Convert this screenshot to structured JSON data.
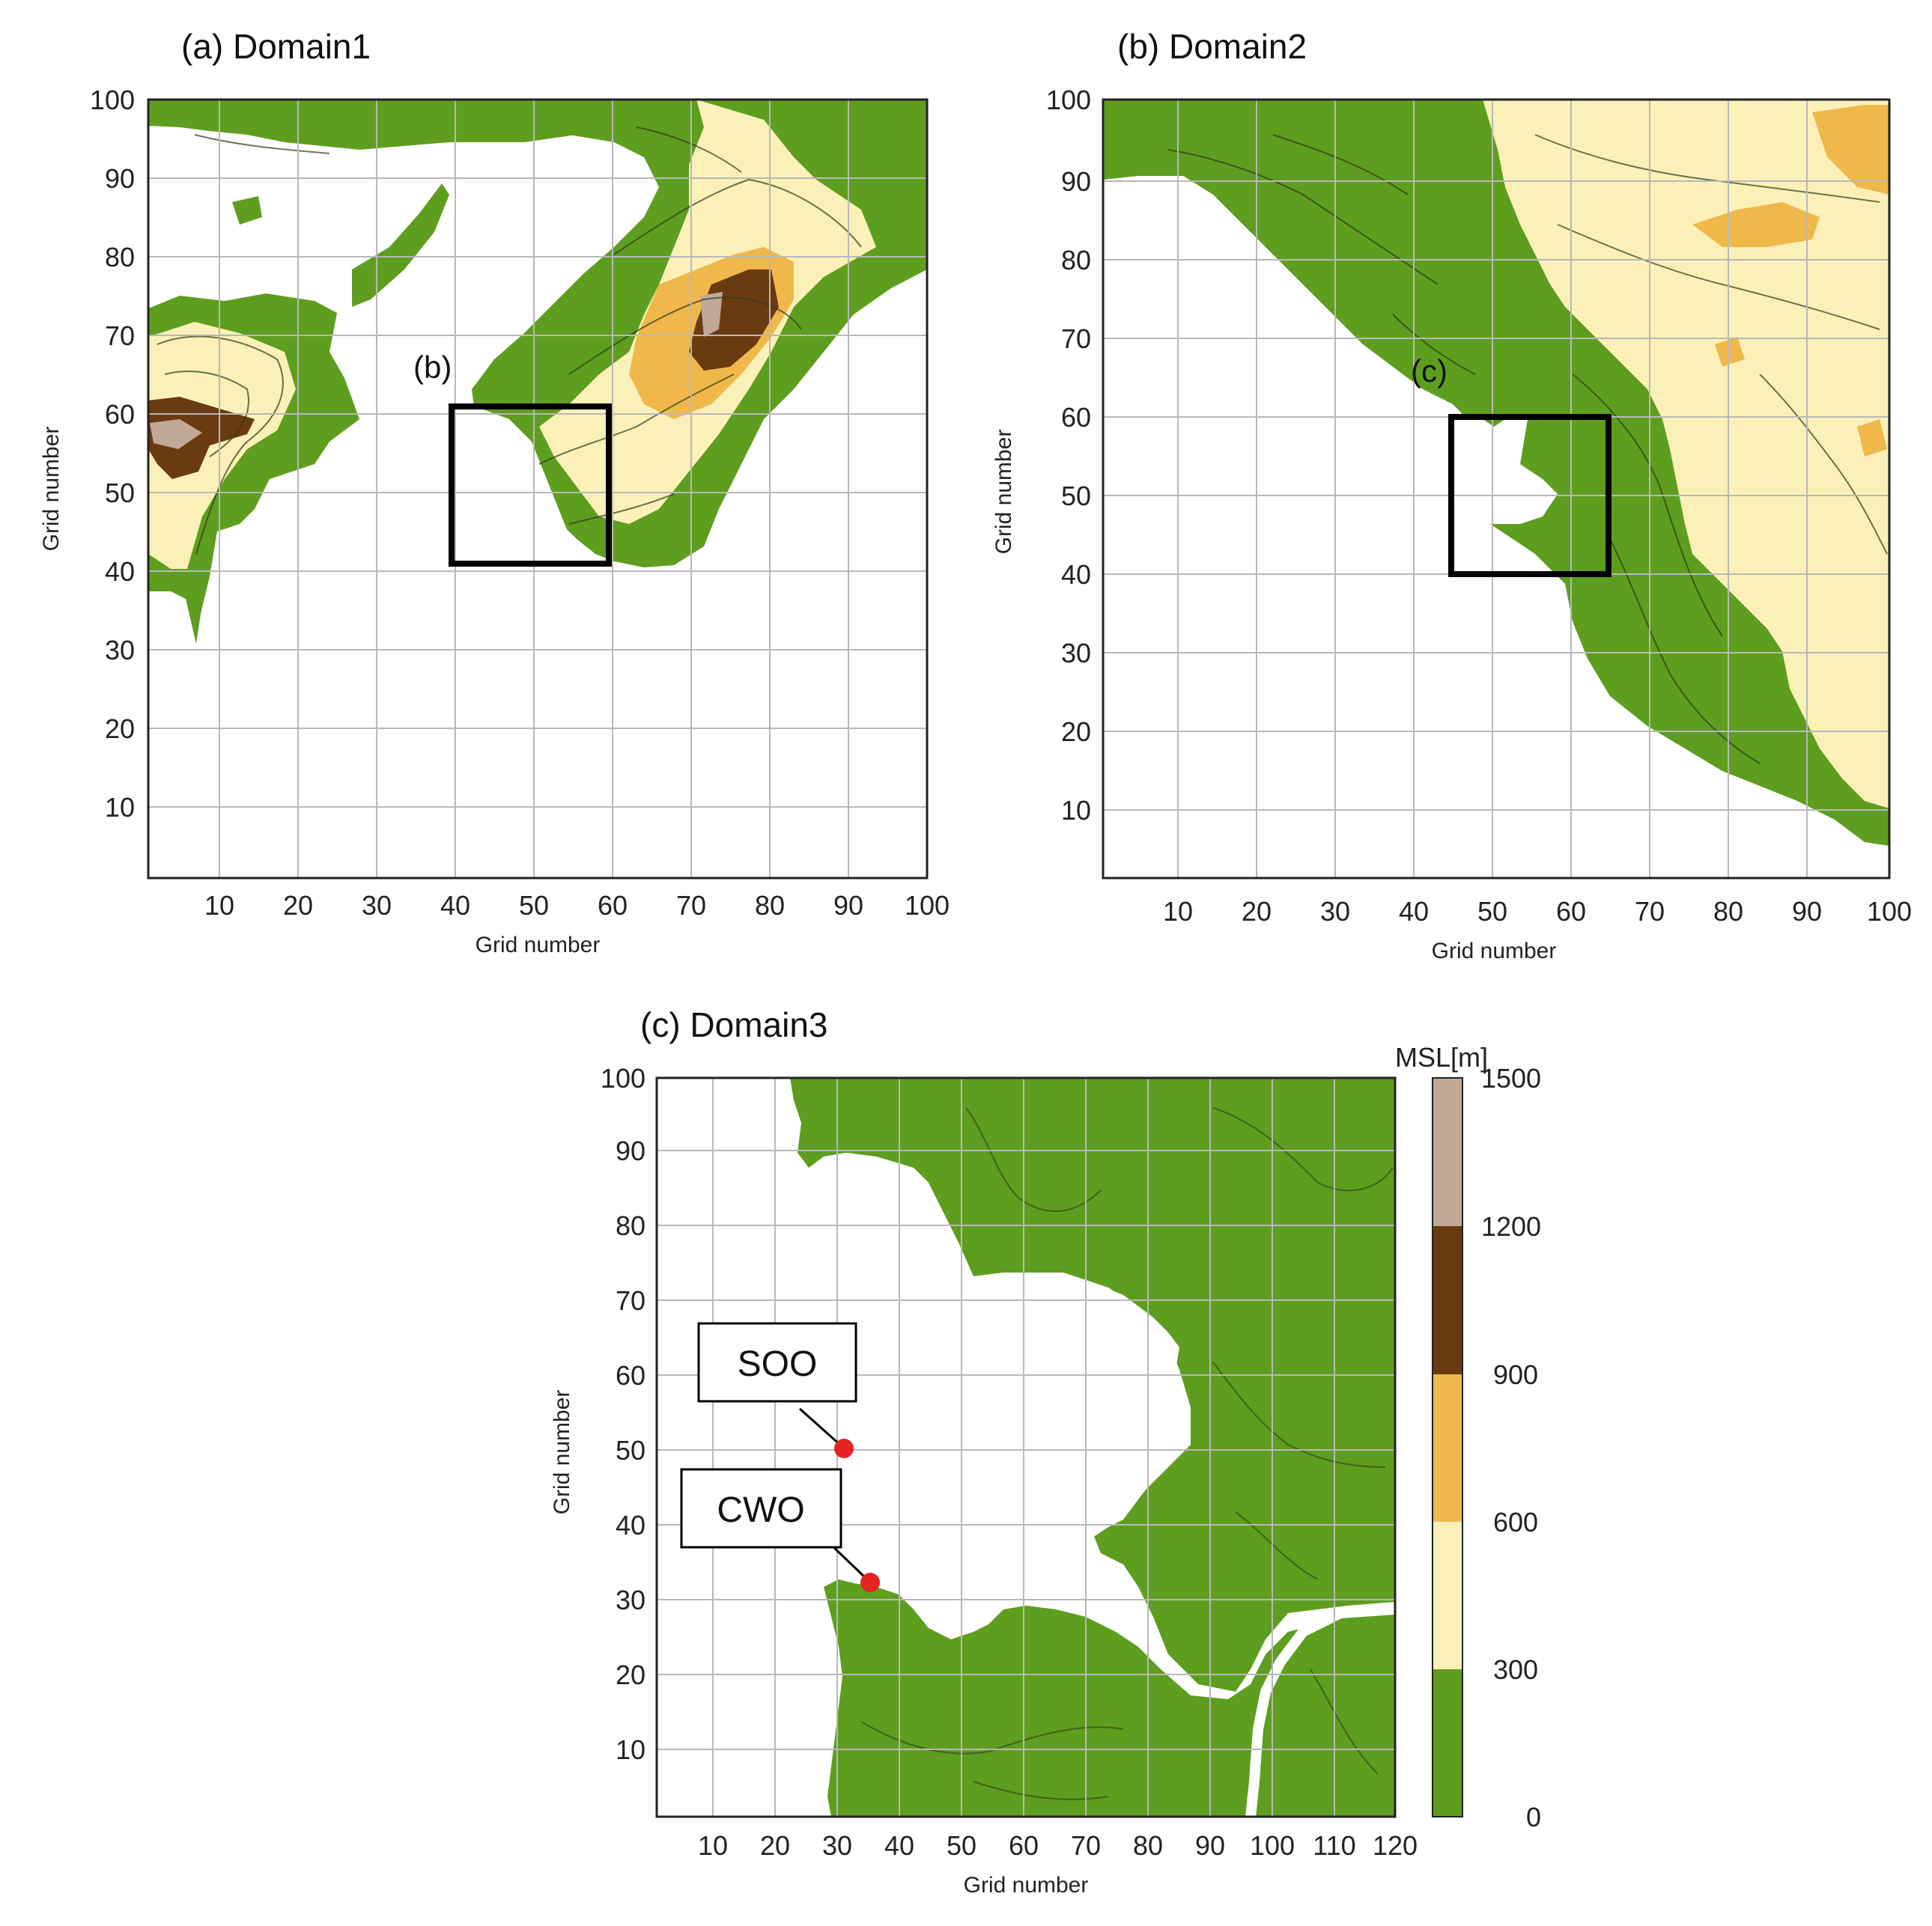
{
  "panels": [
    {
      "id": "a",
      "title": "(a) Domain1",
      "xlabel": "Grid number",
      "ylabel": "Grid number",
      "xrange": [
        1,
        100
      ],
      "yrange": [
        1,
        100
      ],
      "xticks": [
        10,
        20,
        30,
        40,
        50,
        60,
        70,
        80,
        90,
        100
      ],
      "yticks": [
        10,
        20,
        30,
        40,
        50,
        60,
        70,
        80,
        90,
        100
      ],
      "inset": {
        "label": "(b)",
        "x": [
          40,
          60
        ],
        "y": [
          40,
          60
        ]
      }
    },
    {
      "id": "b",
      "title": "(b) Domain2",
      "xlabel": "Grid number",
      "ylabel": "Grid number",
      "xrange": [
        1,
        100
      ],
      "yrange": [
        1,
        100
      ],
      "xticks": [
        10,
        20,
        30,
        40,
        50,
        60,
        70,
        80,
        90,
        100
      ],
      "yticks": [
        10,
        20,
        30,
        40,
        50,
        60,
        70,
        80,
        90,
        100
      ],
      "inset": {
        "label": "(c)",
        "x": [
          45,
          65
        ],
        "y": [
          40,
          60
        ]
      }
    },
    {
      "id": "c",
      "title": "(c) Domain3",
      "xlabel": "Grid number",
      "ylabel": "Grid number",
      "xrange": [
        1,
        120
      ],
      "yrange": [
        1,
        100
      ],
      "xticks": [
        10,
        20,
        30,
        40,
        50,
        60,
        70,
        80,
        90,
        100,
        110,
        120
      ],
      "yticks": [
        10,
        20,
        30,
        40,
        50,
        60,
        70,
        80,
        90,
        100
      ],
      "stations": [
        {
          "name": "SOO",
          "x": 31,
          "y": 51
        },
        {
          "name": "CWO",
          "x": 35,
          "y": 33
        }
      ]
    }
  ],
  "colorbar": {
    "title": "MSL[m]",
    "levels": [
      0,
      300,
      600,
      900,
      1200,
      1500
    ],
    "colors": [
      "#5e9e1e",
      "#fbf0b8",
      "#f0b84a",
      "#6a3a10",
      "#c2a898"
    ]
  },
  "colors": {
    "land_low": "#5e9e1e",
    "water": "#ffffff",
    "grid": "#b8b8b8",
    "station_marker": "#e52421"
  }
}
